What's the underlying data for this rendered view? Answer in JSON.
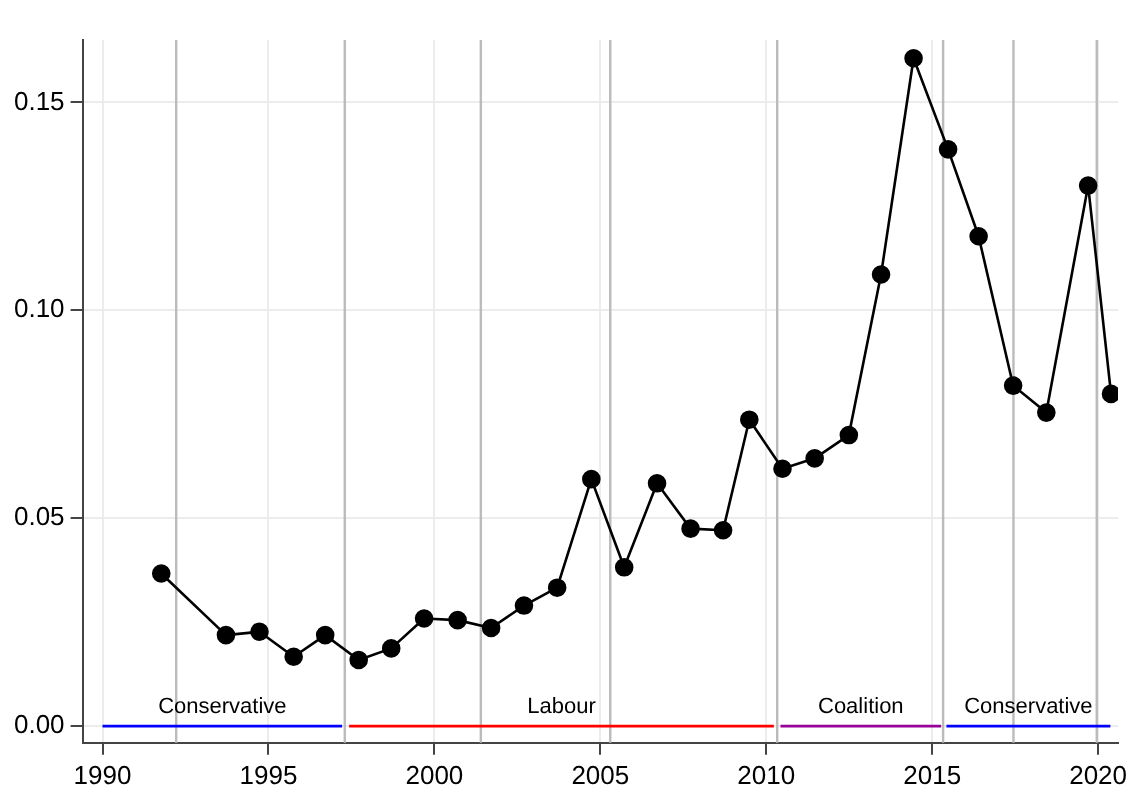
{
  "chart_data": {
    "type": "line",
    "marker": "circle",
    "line_style": "solid",
    "grid": true,
    "legend": false,
    "x": [
      1991.77,
      1993.72,
      1994.73,
      1995.76,
      1996.71,
      1997.72,
      1998.7,
      1999.69,
      2000.7,
      2001.71,
      2002.7,
      2003.7,
      2004.73,
      2005.72,
      2006.71,
      2007.72,
      2008.7,
      2009.49,
      2010.49,
      2011.46,
      2012.49,
      2013.46,
      2014.44,
      2015.48,
      2016.4,
      2017.44,
      2018.44,
      2019.7,
      2020.39
    ],
    "series": [
      {
        "color": "#000000",
        "values": [
          0.0367,
          0.0219,
          0.0227,
          0.0167,
          0.0219,
          0.0159,
          0.0187,
          0.0259,
          0.0255,
          0.0236,
          0.029,
          0.0333,
          0.0594,
          0.0382,
          0.0584,
          0.0475,
          0.0471,
          0.0737,
          0.0619,
          0.0644,
          0.07,
          0.1086,
          0.1606,
          0.1387,
          0.1178,
          0.0819,
          0.0754,
          0.13,
          0.0799
        ]
      },
      {
        "name": "Conservative",
        "color": "#0000ff",
        "marker": "none",
        "x": [
          1990,
          1997.22
        ],
        "values": [
          0,
          0
        ]
      },
      {
        "name": "Labour",
        "color": "#ff0000",
        "marker": "none",
        "x": [
          1997.43,
          2010.23
        ],
        "values": [
          0,
          0
        ]
      },
      {
        "name": "Coalition",
        "color": "#990099",
        "marker": "none",
        "x": [
          2010.43,
          2015.27
        ],
        "values": [
          0,
          0
        ]
      },
      {
        "name": "Conservative",
        "color": "#0000ff",
        "marker": "none",
        "x": [
          2015.43,
          2020.37
        ],
        "values": [
          0,
          0
        ]
      }
    ],
    "xlim": [
      1989.4,
      2020.6
    ],
    "xticks": [
      1990,
      1995,
      2000,
      2005,
      2010,
      2015,
      2020
    ],
    "ylim": [
      -0.004,
      0.165
    ],
    "yticks": [
      {
        "value": 0,
        "label": "0.00"
      },
      {
        "value": 0.05,
        "label": "0.05"
      },
      {
        "value": 0.1,
        "label": "0.10"
      },
      {
        "value": 0.15,
        "label": "0.15"
      }
    ],
    "ref_lines": [
      {
        "axis": "x",
        "value": 1992.22,
        "color": "#bbbbbb"
      },
      {
        "axis": "x",
        "value": 1997.3,
        "color": "#bbbbbb"
      },
      {
        "axis": "x",
        "value": 2001.4,
        "color": "#bbbbbb"
      },
      {
        "axis": "x",
        "value": 2005.3,
        "color": "#bbbbbb"
      },
      {
        "axis": "x",
        "value": 2010.33,
        "color": "#bbbbbb"
      },
      {
        "axis": "x",
        "value": 2015.33,
        "color": "#bbbbbb"
      },
      {
        "axis": "x",
        "value": 2017.45,
        "color": "#bbbbbb"
      },
      {
        "axis": "x",
        "value": 2019.96,
        "color": "#bbbbbb"
      }
    ]
  }
}
